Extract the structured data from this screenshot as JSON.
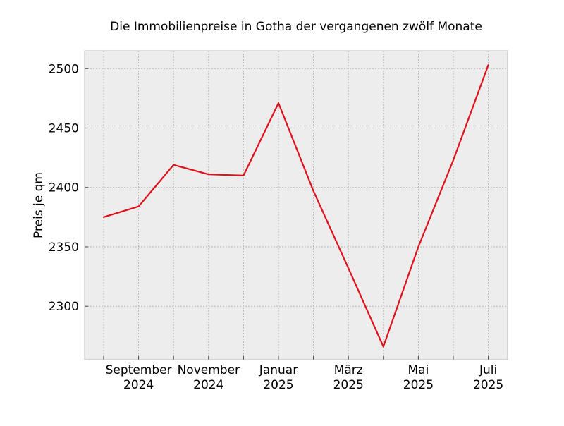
{
  "chart_data": {
    "type": "line",
    "title": "Die Immobilienpreise in Gotha der vergangenen zwölf Monate",
    "xlabel": "",
    "ylabel": "Preis je qm",
    "x": [
      "2024-08",
      "2024-09",
      "2024-10",
      "2024-11",
      "2024-12",
      "2025-01",
      "2025-02",
      "2025-03",
      "2025-04",
      "2025-05",
      "2025-06",
      "2025-07"
    ],
    "series": [
      {
        "values": [
          2375,
          2384,
          2419,
          2411,
          2410,
          2471,
          2397,
          2332,
          2266,
          2350,
          2423,
          2503
        ],
        "color": "#e0111b"
      }
    ],
    "ylim": [
      2255,
      2515
    ],
    "yticks": [
      2300,
      2350,
      2400,
      2450,
      2500
    ],
    "xticks": [
      {
        "x": "2024-09",
        "line1": "September",
        "line2": "2024"
      },
      {
        "x": "2024-11",
        "line1": "November",
        "line2": "2024"
      },
      {
        "x": "2025-01",
        "line1": "Januar",
        "line2": "2025"
      },
      {
        "x": "2025-03",
        "line1": "März",
        "line2": "2025"
      },
      {
        "x": "2025-05",
        "line1": "Mai",
        "line2": "2025"
      },
      {
        "x": "2025-07",
        "line1": "Juli",
        "line2": "2025"
      }
    ],
    "grid": true,
    "colors": {
      "background": "#ededed",
      "grid": "#b0b0b0",
      "frame": "#bcbcbc"
    }
  }
}
